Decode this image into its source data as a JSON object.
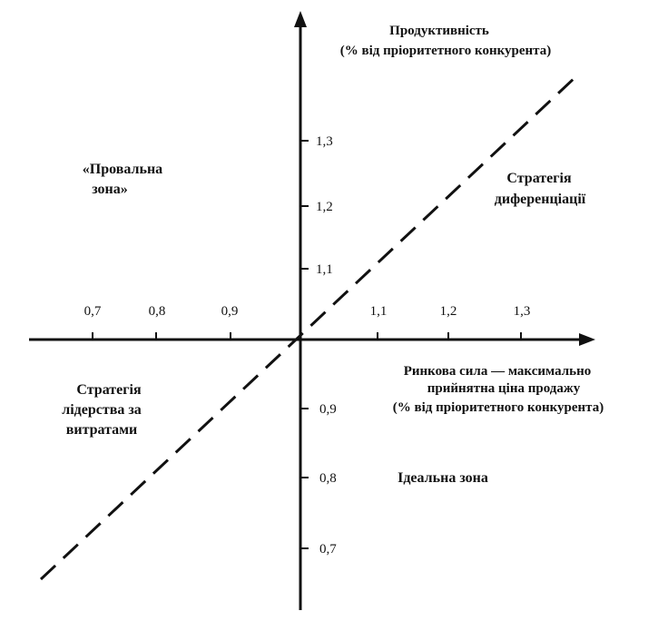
{
  "y_axis": {
    "title_line1": "Продуктивність",
    "title_line2": "(% від пріоритетного конкурента)",
    "ticks_positive": [
      "1,1",
      "1,2",
      "1,3"
    ],
    "ticks_negative": [
      "0,9",
      "0,8",
      "0,7"
    ]
  },
  "x_axis": {
    "title_line1": "Ринкова сила — максимально",
    "title_line2": "прийнятна ціна продажу",
    "title_line3": "(% від пріоритетного конкурента)",
    "ticks_negative": [
      "0,7",
      "0,8",
      "0,9"
    ],
    "ticks_positive": [
      "1,1",
      "1,2",
      "1,3"
    ]
  },
  "zones": {
    "failure_line1": "«Провальна",
    "failure_line2": "зона»",
    "differentiation_line1": "Стратегія",
    "differentiation_line2": "диференціації",
    "cost_leadership_line1": "Стратегія",
    "cost_leadership_line2": "лідерства за",
    "cost_leadership_line3": "витратами",
    "ideal": "Ідеальна зона"
  },
  "colors": {
    "ink": "#111111",
    "background": "#ffffff"
  },
  "diagonal_style": "dashed"
}
